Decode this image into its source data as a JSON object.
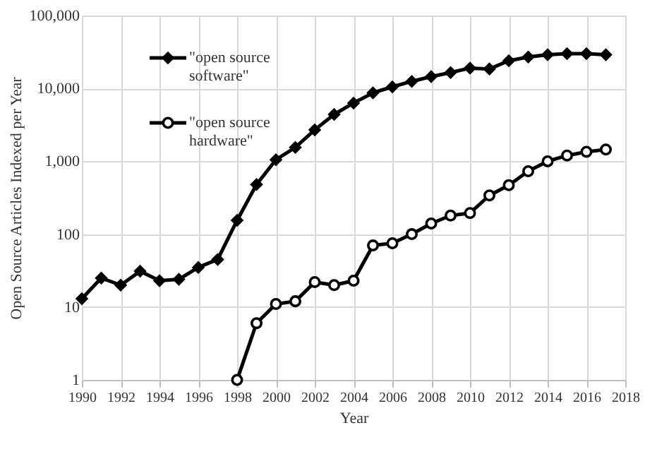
{
  "chart_data": {
    "type": "line",
    "xlabel": "Year",
    "ylabel": "Open Source Articles Indexed per Year",
    "log": "y",
    "grid": true,
    "legend": "top left",
    "x": [
      1990,
      1991,
      1992,
      1993,
      1994,
      1995,
      1996,
      1997,
      1998,
      1999,
      2000,
      2001,
      2002,
      2003,
      2004,
      2005,
      2006,
      2007,
      2008,
      2009,
      2010,
      2011,
      2012,
      2013,
      2014,
      2015,
      2016,
      2017
    ],
    "series": [
      {
        "name": "\"open source software\"",
        "color": "#000000",
        "marker": "diamond",
        "values": [
          13,
          25,
          20,
          31,
          23,
          24,
          35,
          45,
          155,
          480,
          1050,
          1550,
          2700,
          4400,
          6300,
          8700,
          10500,
          12500,
          14500,
          16500,
          19000,
          18500,
          24000,
          27000,
          29000,
          30000,
          30000,
          29000
        ]
      },
      {
        "name": "\"open source hardware\"",
        "color": "#000000",
        "marker": "circle",
        "x": [
          1998,
          1999,
          2000,
          2001,
          2002,
          2003,
          2004,
          2005,
          2006,
          2007,
          2008,
          2009,
          2010,
          2011,
          2012,
          2013,
          2014,
          2015,
          2016,
          2017
        ],
        "values": [
          1,
          6,
          11,
          12,
          22,
          20,
          23,
          70,
          75,
          100,
          140,
          180,
          195,
          340,
          470,
          730,
          1000,
          1200,
          1350,
          1450
        ]
      }
    ],
    "xlim": [
      1990,
      2018
    ],
    "xticks": [
      1990,
      1992,
      1994,
      1996,
      1998,
      2000,
      2002,
      2004,
      2006,
      2008,
      2010,
      2012,
      2014,
      2016,
      2018
    ],
    "ylim": [
      1,
      100000
    ],
    "yticks": [
      1,
      10,
      100,
      {
        "value": 1000,
        "label": "1,000"
      },
      {
        "value": 10000,
        "label": "10,000"
      },
      {
        "value": 100000,
        "label": "100,000"
      }
    ]
  }
}
